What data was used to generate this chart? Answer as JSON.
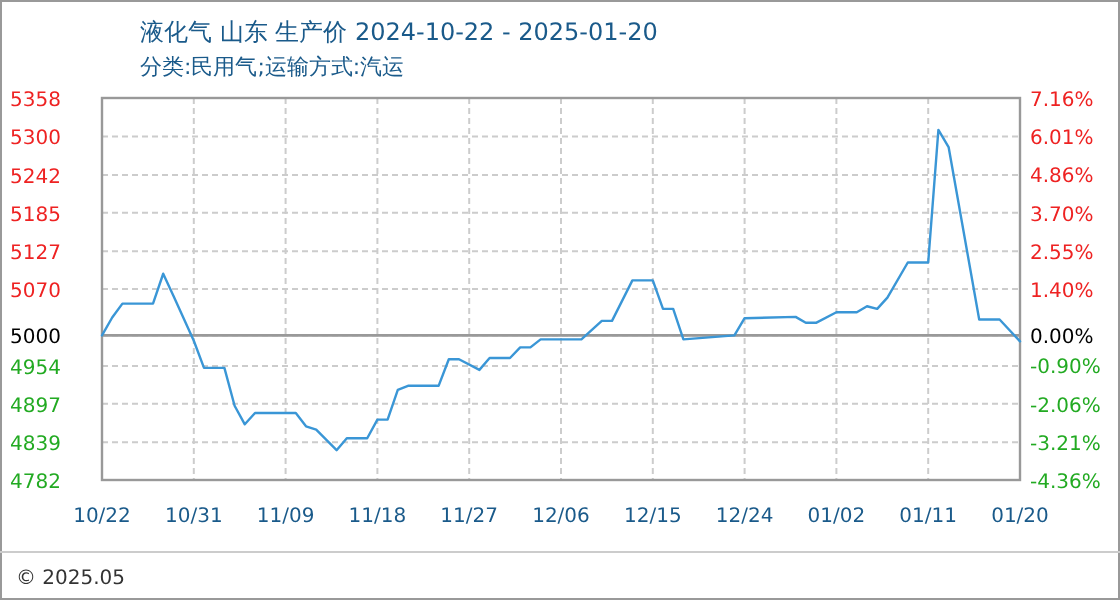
{
  "chart_data": {
    "type": "line",
    "title": "液化气 山东 生产价 2024-10-22 - 2025-01-20",
    "subtitle": "分类:民用气;运输方式:汽运",
    "x": [
      "2024-10-22",
      "2024-10-23",
      "2024-10-24",
      "2024-10-27",
      "2024-10-28",
      "2024-10-29",
      "2024-10-31",
      "2024-11-01",
      "2024-11-03",
      "2024-11-04",
      "2024-11-05",
      "2024-11-06",
      "2024-11-10",
      "2024-11-11",
      "2024-11-12",
      "2024-11-14",
      "2024-11-15",
      "2024-11-17",
      "2024-11-18",
      "2024-11-19",
      "2024-11-20",
      "2024-11-21",
      "2024-11-24",
      "2024-11-25",
      "2024-11-26",
      "2024-11-28",
      "2024-11-29",
      "2024-12-01",
      "2024-12-02",
      "2024-12-03",
      "2024-12-04",
      "2024-12-08",
      "2024-12-10",
      "2024-12-11",
      "2024-12-13",
      "2024-12-15",
      "2024-12-16",
      "2024-12-17",
      "2024-12-18",
      "2024-12-23",
      "2024-12-24",
      "2024-12-29",
      "2024-12-30",
      "2024-12-31",
      "2025-01-02",
      "2025-01-04",
      "2025-01-05",
      "2025-01-06",
      "2025-01-07",
      "2025-01-09",
      "2025-01-11",
      "2025-01-12",
      "2025-01-13",
      "2025-01-16",
      "2025-01-18",
      "2025-01-20"
    ],
    "series": [
      {
        "color": "#3a96d6",
        "values": [
          5000,
          5027,
          5048,
          5048,
          5093,
          5060,
          4992,
          4951,
          4951,
          4894,
          4866,
          4883,
          4883,
          4863,
          4858,
          4827,
          4845,
          4845,
          4873,
          4873,
          4918,
          4924,
          4924,
          4964,
          4964,
          4948,
          4966,
          4966,
          4982,
          4982,
          4994,
          4994,
          5022,
          5022,
          5083,
          5083,
          5040,
          5040,
          4994,
          5000,
          5026,
          5028,
          5019,
          5019,
          5035,
          5035,
          5044,
          5040,
          5057,
          5110,
          5110,
          5310,
          5284,
          5024,
          5024,
          4991
        ]
      }
    ],
    "xlim": [
      "2024-10-22",
      "2025-01-20"
    ],
    "xticks": [
      {
        "value": "2024-10-22",
        "label": "10/22"
      },
      {
        "value": "2024-10-31",
        "label": "10/31"
      },
      {
        "value": "2024-11-09",
        "label": "11/09"
      },
      {
        "value": "2024-11-18",
        "label": "11/18"
      },
      {
        "value": "2024-11-27",
        "label": "11/27"
      },
      {
        "value": "2024-12-06",
        "label": "12/06"
      },
      {
        "value": "2024-12-15",
        "label": "12/15"
      },
      {
        "value": "2024-12-24",
        "label": "12/24"
      },
      {
        "value": "2025-01-02",
        "label": "01/02"
      },
      {
        "value": "2025-01-11",
        "label": "01/11"
      },
      {
        "value": "2025-01-20",
        "label": "01/20"
      }
    ],
    "ylim": [
      4782,
      5358
    ],
    "yticks": [
      5358,
      5300,
      5242,
      5185,
      5127,
      5070,
      5000,
      4954,
      4897,
      4839,
      4782
    ],
    "y2lim": [
      -4.36,
      7.16
    ],
    "y2ticks": [
      {
        "value": 7.16,
        "label": "7.16%"
      },
      {
        "value": 6.01,
        "label": "6.01%"
      },
      {
        "value": 4.86,
        "label": "4.86%"
      },
      {
        "value": 3.7,
        "label": "3.70%"
      },
      {
        "value": 2.55,
        "label": "2.55%"
      },
      {
        "value": 1.4,
        "label": "1.40%"
      },
      {
        "value": 0,
        "label": "0.00%"
      },
      {
        "value": -0.9,
        "label": "-0.90%"
      },
      {
        "value": -2.06,
        "label": "-2.06%"
      },
      {
        "value": -3.21,
        "label": "-3.21%"
      },
      {
        "value": -4.36,
        "label": "-4.36%"
      }
    ],
    "ref_lines": [
      {
        "axis": "y",
        "value": 5000,
        "color": "#999999"
      }
    ],
    "grid": true,
    "marker": "none",
    "line_style": "solid",
    "annotations": [
      "© 2025.05"
    ]
  }
}
